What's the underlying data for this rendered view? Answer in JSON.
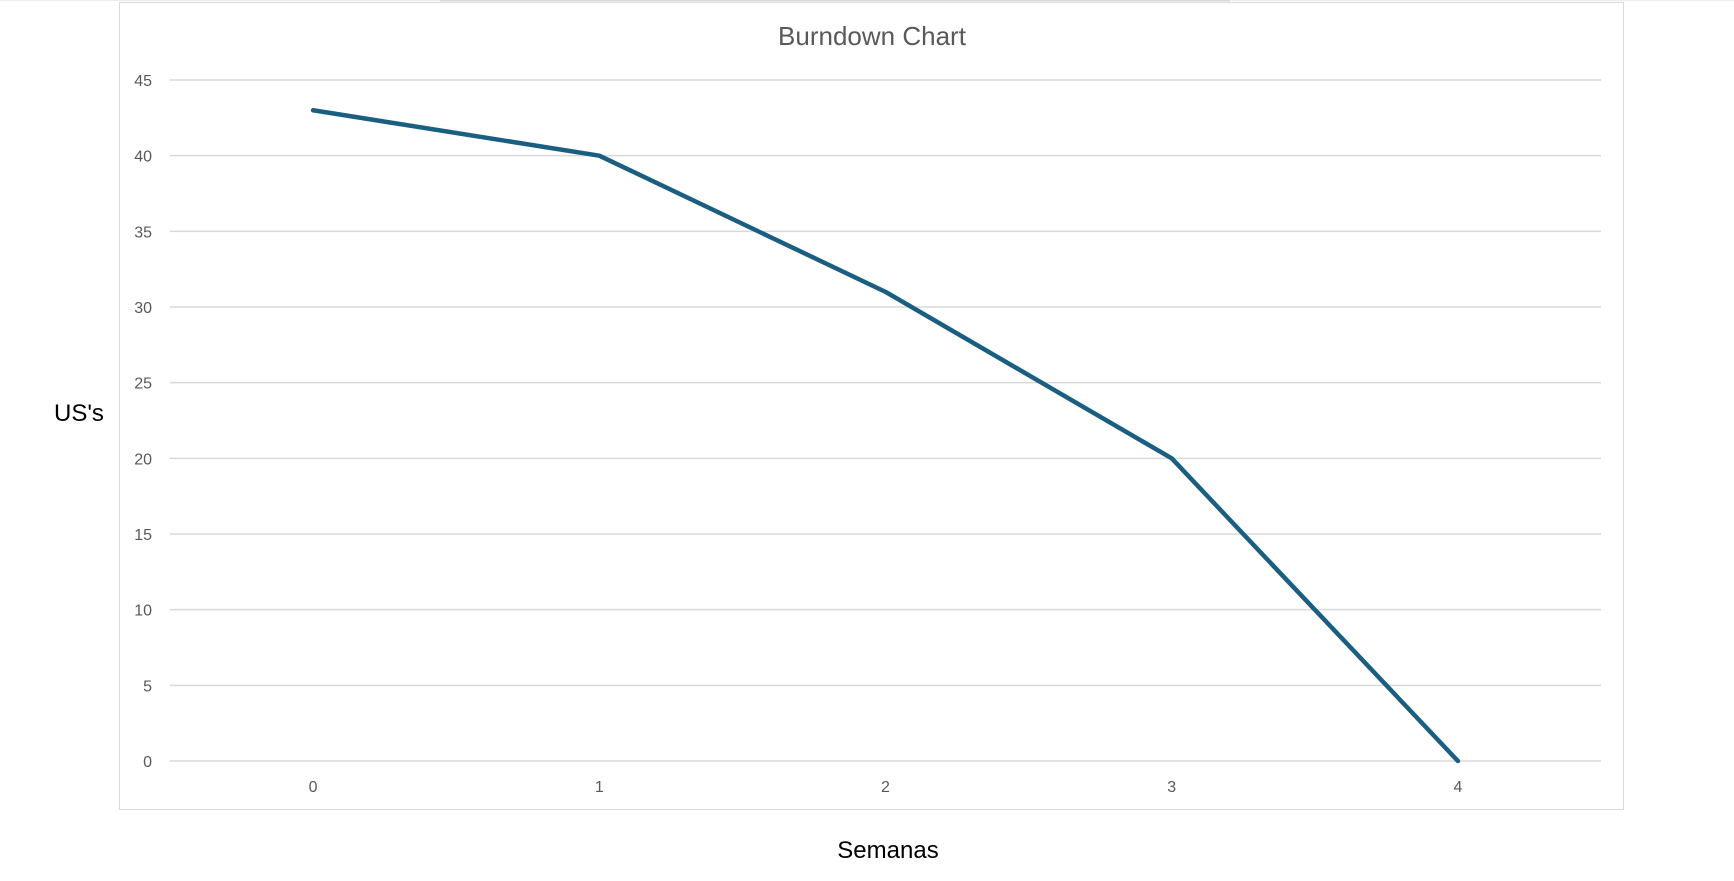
{
  "chart_data": {
    "type": "line",
    "title": "Burndown Chart",
    "xlabel": "Semanas",
    "ylabel": "US's",
    "x": [
      0,
      1,
      2,
      3,
      4
    ],
    "series": [
      {
        "values": [
          43,
          40,
          31,
          20,
          0
        ]
      }
    ],
    "x_tick_labels": [
      "0",
      "1",
      "2",
      "3",
      "4"
    ],
    "y_ticks": [
      0,
      5,
      10,
      15,
      20,
      25,
      30,
      35,
      40,
      45
    ],
    "ylim": [
      0,
      45
    ],
    "grid": true,
    "legend": "none",
    "colors": {
      "line": "#1a5e82",
      "grid": "#d9d9d9",
      "frame": "#d9d9d9",
      "tick_text": "#595959",
      "title_text": "#595959",
      "axis_label_text": "#000000"
    }
  }
}
